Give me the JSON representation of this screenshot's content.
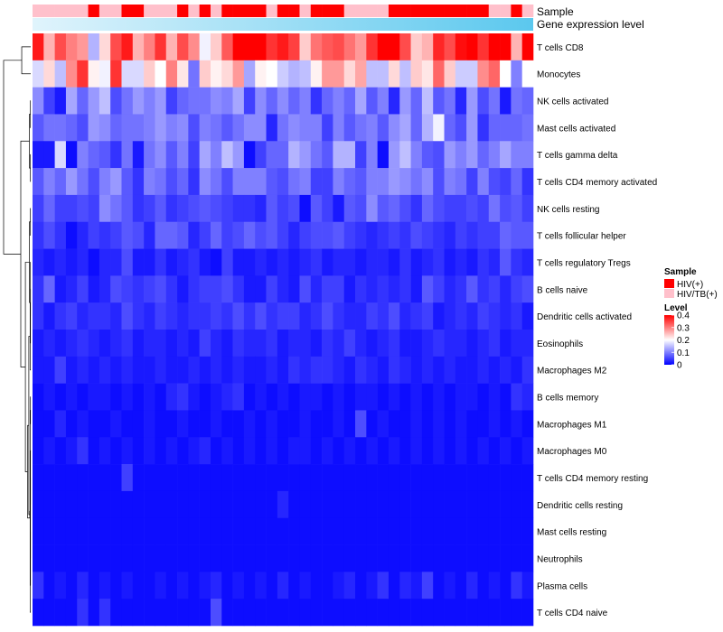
{
  "chart_data": {
    "type": "heatmap",
    "title": "",
    "annotation_tracks": [
      {
        "name": "Sample",
        "label": "Sample"
      },
      {
        "name": "Gene expression level",
        "label": "Gene expression level",
        "gradient": [
          "#e0f4fc",
          "#5bc8ee"
        ]
      }
    ],
    "sample_groups": [
      {
        "key": "HIV+",
        "label": "HIV(+)",
        "color": "#ff0000"
      },
      {
        "key": "HIV/TB+",
        "label": "HIV/TB(+)",
        "color": "#ffc0cb"
      }
    ],
    "sample_annotation": [
      "HIV/TB+",
      "HIV/TB+",
      "HIV/TB+",
      "HIV/TB+",
      "HIV/TB+",
      "HIV+",
      "HIV/TB+",
      "HIV/TB+",
      "HIV+",
      "HIV+",
      "HIV/TB+",
      "HIV/TB+",
      "HIV/TB+",
      "HIV+",
      "HIV/TB+",
      "HIV+",
      "HIV/TB+",
      "HIV+",
      "HIV+",
      "HIV+",
      "HIV+",
      "HIV/TB+",
      "HIV+",
      "HIV+",
      "HIV/TB+",
      "HIV+",
      "HIV+",
      "HIV+",
      "HIV/TB+",
      "HIV/TB+",
      "HIV/TB+",
      "HIV/TB+",
      "HIV+",
      "HIV+",
      "HIV+",
      "HIV+",
      "HIV+",
      "HIV+",
      "HIV+",
      "HIV+",
      "HIV+",
      "HIV/TB+",
      "HIV/TB+",
      "HIV+",
      "HIV/TB+"
    ],
    "legend": {
      "sample_title": "Sample",
      "level_title": "Level",
      "level_ticks": [
        0.4,
        0.3,
        0.2,
        0.1,
        0
      ],
      "level_range": [
        0,
        0.4
      ],
      "color_scale": {
        "low": "#0000ff",
        "mid": "#ffffff",
        "high": "#ff0000",
        "mid_value": 0.2
      }
    },
    "rows": [
      "T cells CD8",
      "Monocytes",
      "NK cells activated",
      "Mast cells activated",
      "T cells gamma delta",
      "T cells CD4 memory activated",
      "NK cells resting",
      "T cells follicular helper",
      "T cells regulatory  Tregs",
      "B cells naive",
      "Dendritic cells activated",
      "Eosinophils",
      "Macrophages M2",
      "B cells memory",
      "Macrophages M1",
      "Macrophages M0",
      "T cells CD4 memory resting",
      "Dendritic cells resting",
      "Mast cells resting",
      "Neutrophils",
      "Plasma cells",
      "T cells CD4 naive"
    ],
    "row_means": [
      0.33,
      0.21,
      0.09,
      0.09,
      0.08,
      0.08,
      0.05,
      0.05,
      0.03,
      0.04,
      0.04,
      0.03,
      0.03,
      0.02,
      0.02,
      0.02,
      0.01,
      0.01,
      0.01,
      0.01,
      0.02,
      0.02
    ],
    "values": [
      [
        0.38,
        0.26,
        0.34,
        0.3,
        0.28,
        0.14,
        0.23,
        0.34,
        0.38,
        0.26,
        0.3,
        0.36,
        0.26,
        0.34,
        0.29,
        0.19,
        0.24,
        0.33,
        0.4,
        0.4,
        0.4,
        0.36,
        0.38,
        0.35,
        0.24,
        0.31,
        0.33,
        0.34,
        0.31,
        0.28,
        0.36,
        0.4,
        0.4,
        0.34,
        0.24,
        0.26,
        0.37,
        0.34,
        0.39,
        0.4,
        0.36,
        0.4,
        0.4,
        0.26,
        0.4
      ],
      [
        0.17,
        0.23,
        0.15,
        0.29,
        0.36,
        0.21,
        0.19,
        0.36,
        0.17,
        0.17,
        0.24,
        0.2,
        0.3,
        0.22,
        0.09,
        0.24,
        0.21,
        0.23,
        0.28,
        0.13,
        0.21,
        0.2,
        0.16,
        0.14,
        0.15,
        0.21,
        0.28,
        0.28,
        0.23,
        0.27,
        0.15,
        0.15,
        0.23,
        0.15,
        0.24,
        0.22,
        0.32,
        0.24,
        0.16,
        0.16,
        0.29,
        0.32,
        0.2,
        0.1,
        0.2
      ],
      [
        0.11,
        0.05,
        0.02,
        0.13,
        0.08,
        0.12,
        0.15,
        0.06,
        0.09,
        0.12,
        0.1,
        0.12,
        0.05,
        0.08,
        0.09,
        0.09,
        0.11,
        0.1,
        0.13,
        0.05,
        0.11,
        0.08,
        0.11,
        0.08,
        0.1,
        0.04,
        0.08,
        0.1,
        0.08,
        0.13,
        0.07,
        0.1,
        0.03,
        0.12,
        0.08,
        0.15,
        0.07,
        0.09,
        0.03,
        0.12,
        0.06,
        0.09,
        0.02,
        0.09,
        0.08
      ],
      [
        0.07,
        0.09,
        0.09,
        0.08,
        0.06,
        0.12,
        0.11,
        0.08,
        0.09,
        0.09,
        0.1,
        0.12,
        0.1,
        0.11,
        0.06,
        0.1,
        0.09,
        0.07,
        0.09,
        0.11,
        0.11,
        0.03,
        0.09,
        0.11,
        0.1,
        0.1,
        0.05,
        0.1,
        0.07,
        0.09,
        0.1,
        0.07,
        0.11,
        0.13,
        0.08,
        0.14,
        0.19,
        0.08,
        0.06,
        0.12,
        0.04,
        0.08,
        0.08,
        0.08,
        0.09
      ],
      [
        0.02,
        0.02,
        0.17,
        0.01,
        0.1,
        0.08,
        0.07,
        0.04,
        0.09,
        0.02,
        0.09,
        0.11,
        0.07,
        0.1,
        0.05,
        0.13,
        0.1,
        0.15,
        0.12,
        0.01,
        0.05,
        0.08,
        0.08,
        0.14,
        0.12,
        0.09,
        0.07,
        0.14,
        0.14,
        0.05,
        0.1,
        0.01,
        0.12,
        0.15,
        0.1,
        0.07,
        0.06,
        0.12,
        0.1,
        0.12,
        0.08,
        0.1,
        0.13,
        0.1,
        0.1
      ],
      [
        0.07,
        0.1,
        0.08,
        0.12,
        0.09,
        0.06,
        0.1,
        0.12,
        0.07,
        0.04,
        0.1,
        0.09,
        0.06,
        0.08,
        0.04,
        0.11,
        0.09,
        0.06,
        0.1,
        0.1,
        0.1,
        0.07,
        0.06,
        0.09,
        0.1,
        0.05,
        0.05,
        0.1,
        0.08,
        0.07,
        0.1,
        0.1,
        0.12,
        0.11,
        0.09,
        0.11,
        0.06,
        0.1,
        0.09,
        0.05,
        0.1,
        0.06,
        0.05,
        0.08,
        0.04
      ],
      [
        0.05,
        0.08,
        0.05,
        0.05,
        0.06,
        0.05,
        0.11,
        0.09,
        0.07,
        0.04,
        0.05,
        0.07,
        0.04,
        0.05,
        0.06,
        0.07,
        0.06,
        0.05,
        0.04,
        0.04,
        0.03,
        0.07,
        0.05,
        0.06,
        0.01,
        0.07,
        0.05,
        0.02,
        0.07,
        0.06,
        0.11,
        0.07,
        0.08,
        0.06,
        0.04,
        0.08,
        0.06,
        0.05,
        0.05,
        0.06,
        0.05,
        0.09,
        0.06,
        0.07,
        0.05
      ],
      [
        0.04,
        0.06,
        0.04,
        0.01,
        0.03,
        0.05,
        0.04,
        0.05,
        0.07,
        0.06,
        0.03,
        0.08,
        0.08,
        0.07,
        0.03,
        0.05,
        0.08,
        0.05,
        0.06,
        0.08,
        0.06,
        0.07,
        0.05,
        0.03,
        0.05,
        0.06,
        0.06,
        0.07,
        0.05,
        0.04,
        0.03,
        0.04,
        0.05,
        0.04,
        0.06,
        0.05,
        0.04,
        0.03,
        0.05,
        0.04,
        0.05,
        0.05,
        0.08,
        0.07,
        0.07
      ],
      [
        0.03,
        0.02,
        0.03,
        0.02,
        0.03,
        0.01,
        0.03,
        0.03,
        0.06,
        0.02,
        0.02,
        0.04,
        0.02,
        0.03,
        0.04,
        0.02,
        0.01,
        0.05,
        0.02,
        0.02,
        0.03,
        0.02,
        0.03,
        0.02,
        0.03,
        0.04,
        0.02,
        0.03,
        0.03,
        0.02,
        0.03,
        0.03,
        0.02,
        0.04,
        0.02,
        0.03,
        0.04,
        0.02,
        0.03,
        0.02,
        0.04,
        0.03,
        0.07,
        0.04,
        0.03
      ],
      [
        0.04,
        0.08,
        0.02,
        0.03,
        0.05,
        0.02,
        0.03,
        0.06,
        0.05,
        0.04,
        0.05,
        0.06,
        0.04,
        0.02,
        0.04,
        0.05,
        0.05,
        0.06,
        0.04,
        0.02,
        0.02,
        0.05,
        0.03,
        0.02,
        0.06,
        0.03,
        0.05,
        0.05,
        0.02,
        0.04,
        0.03,
        0.04,
        0.03,
        0.04,
        0.02,
        0.07,
        0.05,
        0.03,
        0.04,
        0.07,
        0.04,
        0.05,
        0.03,
        0.05,
        0.06
      ],
      [
        0.04,
        0.02,
        0.04,
        0.05,
        0.03,
        0.04,
        0.04,
        0.03,
        0.06,
        0.04,
        0.03,
        0.05,
        0.04,
        0.03,
        0.04,
        0.04,
        0.05,
        0.04,
        0.06,
        0.04,
        0.06,
        0.04,
        0.05,
        0.05,
        0.03,
        0.04,
        0.06,
        0.04,
        0.03,
        0.03,
        0.05,
        0.04,
        0.06,
        0.03,
        0.04,
        0.05,
        0.02,
        0.03,
        0.04,
        0.03,
        0.05,
        0.04,
        0.03,
        0.04,
        0.02
      ],
      [
        0.02,
        0.03,
        0.02,
        0.03,
        0.04,
        0.03,
        0.02,
        0.03,
        0.04,
        0.02,
        0.03,
        0.03,
        0.02,
        0.03,
        0.02,
        0.05,
        0.03,
        0.02,
        0.04,
        0.03,
        0.03,
        0.04,
        0.02,
        0.03,
        0.03,
        0.02,
        0.04,
        0.03,
        0.05,
        0.03,
        0.02,
        0.03,
        0.04,
        0.02,
        0.02,
        0.03,
        0.04,
        0.03,
        0.03,
        0.02,
        0.03,
        0.04,
        0.02,
        0.03,
        0.03
      ],
      [
        0.02,
        0.02,
        0.05,
        0.02,
        0.03,
        0.02,
        0.03,
        0.02,
        0.03,
        0.02,
        0.02,
        0.03,
        0.02,
        0.02,
        0.03,
        0.02,
        0.03,
        0.02,
        0.03,
        0.02,
        0.02,
        0.03,
        0.02,
        0.04,
        0.03,
        0.04,
        0.04,
        0.03,
        0.02,
        0.04,
        0.03,
        0.02,
        0.04,
        0.03,
        0.02,
        0.03,
        0.02,
        0.03,
        0.02,
        0.02,
        0.03,
        0.02,
        0.03,
        0.02,
        0.04
      ],
      [
        0.01,
        0.02,
        0.01,
        0.02,
        0.01,
        0.02,
        0.02,
        0.01,
        0.02,
        0.01,
        0.02,
        0.01,
        0.03,
        0.04,
        0.02,
        0.01,
        0.02,
        0.03,
        0.04,
        0.01,
        0.02,
        0.01,
        0.02,
        0.01,
        0.02,
        0.02,
        0.01,
        0.02,
        0.01,
        0.02,
        0.02,
        0.01,
        0.02,
        0.01,
        0.02,
        0.01,
        0.02,
        0.01,
        0.02,
        0.02,
        0.01,
        0.02,
        0.01,
        0.04,
        0.03
      ],
      [
        0.01,
        0.01,
        0.03,
        0.01,
        0.02,
        0.01,
        0.01,
        0.02,
        0.01,
        0.01,
        0.02,
        0.01,
        0.01,
        0.02,
        0.01,
        0.01,
        0.02,
        0.01,
        0.01,
        0.02,
        0.01,
        0.02,
        0.01,
        0.01,
        0.02,
        0.01,
        0.01,
        0.02,
        0.01,
        0.06,
        0.01,
        0.02,
        0.01,
        0.01,
        0.02,
        0.01,
        0.02,
        0.01,
        0.02,
        0.01,
        0.01,
        0.02,
        0.01,
        0.02,
        0.01
      ],
      [
        0.01,
        0.02,
        0.01,
        0.02,
        0.04,
        0.01,
        0.02,
        0.01,
        0.02,
        0.01,
        0.02,
        0.01,
        0.02,
        0.01,
        0.02,
        0.03,
        0.01,
        0.02,
        0.01,
        0.02,
        0.01,
        0.02,
        0.01,
        0.02,
        0.02,
        0.01,
        0.02,
        0.01,
        0.02,
        0.01,
        0.02,
        0.01,
        0.02,
        0.01,
        0.02,
        0.01,
        0.02,
        0.01,
        0.02,
        0.01,
        0.02,
        0.01,
        0.02,
        0.01,
        0.02
      ],
      [
        0.01,
        0.01,
        0.01,
        0.01,
        0.01,
        0.01,
        0.01,
        0.01,
        0.05,
        0.01,
        0.01,
        0.01,
        0.01,
        0.01,
        0.01,
        0.01,
        0.01,
        0.01,
        0.01,
        0.01,
        0.01,
        0.01,
        0.01,
        0.01,
        0.01,
        0.01,
        0.01,
        0.01,
        0.01,
        0.01,
        0.01,
        0.01,
        0.01,
        0.01,
        0.01,
        0.01,
        0.01,
        0.01,
        0.01,
        0.01,
        0.01,
        0.01,
        0.01,
        0.01,
        0.01
      ],
      [
        0.01,
        0.01,
        0.01,
        0.01,
        0.01,
        0.01,
        0.01,
        0.01,
        0.01,
        0.01,
        0.01,
        0.01,
        0.01,
        0.01,
        0.01,
        0.01,
        0.01,
        0.01,
        0.01,
        0.01,
        0.01,
        0.01,
        0.03,
        0.01,
        0.01,
        0.01,
        0.01,
        0.01,
        0.01,
        0.01,
        0.01,
        0.01,
        0.01,
        0.01,
        0.01,
        0.01,
        0.01,
        0.01,
        0.01,
        0.01,
        0.01,
        0.01,
        0.01,
        0.01,
        0.01
      ],
      [
        0.01,
        0.01,
        0.01,
        0.01,
        0.01,
        0.01,
        0.01,
        0.01,
        0.01,
        0.01,
        0.01,
        0.01,
        0.01,
        0.01,
        0.01,
        0.01,
        0.01,
        0.01,
        0.01,
        0.01,
        0.01,
        0.01,
        0.01,
        0.01,
        0.01,
        0.01,
        0.01,
        0.01,
        0.01,
        0.01,
        0.01,
        0.01,
        0.01,
        0.01,
        0.01,
        0.01,
        0.01,
        0.01,
        0.01,
        0.01,
        0.01,
        0.01,
        0.01,
        0.01,
        0.01
      ],
      [
        0.01,
        0.01,
        0.01,
        0.01,
        0.01,
        0.01,
        0.01,
        0.01,
        0.01,
        0.01,
        0.01,
        0.01,
        0.01,
        0.01,
        0.01,
        0.01,
        0.01,
        0.01,
        0.01,
        0.01,
        0.01,
        0.01,
        0.01,
        0.01,
        0.01,
        0.01,
        0.01,
        0.01,
        0.01,
        0.01,
        0.01,
        0.01,
        0.01,
        0.01,
        0.01,
        0.01,
        0.01,
        0.01,
        0.01,
        0.01,
        0.01,
        0.01,
        0.01,
        0.01,
        0.01
      ],
      [
        0.04,
        0.01,
        0.02,
        0.01,
        0.03,
        0.01,
        0.02,
        0.01,
        0.02,
        0.01,
        0.01,
        0.02,
        0.01,
        0.02,
        0.01,
        0.02,
        0.03,
        0.01,
        0.02,
        0.01,
        0.02,
        0.01,
        0.03,
        0.01,
        0.02,
        0.01,
        0.01,
        0.02,
        0.03,
        0.01,
        0.02,
        0.04,
        0.01,
        0.03,
        0.02,
        0.05,
        0.01,
        0.02,
        0.01,
        0.03,
        0.01,
        0.02,
        0.01,
        0.04,
        0.02
      ],
      [
        0.01,
        0.01,
        0.01,
        0.01,
        0.04,
        0.01,
        0.04,
        0.01,
        0.01,
        0.01,
        0.01,
        0.01,
        0.01,
        0.01,
        0.01,
        0.01,
        0.06,
        0.01,
        0.01,
        0.01,
        0.01,
        0.01,
        0.01,
        0.01,
        0.01,
        0.01,
        0.01,
        0.01,
        0.01,
        0.01,
        0.01,
        0.01,
        0.01,
        0.01,
        0.01,
        0.01,
        0.01,
        0.01,
        0.01,
        0.01,
        0.01,
        0.01,
        0.01,
        0.01,
        0.01
      ]
    ]
  }
}
